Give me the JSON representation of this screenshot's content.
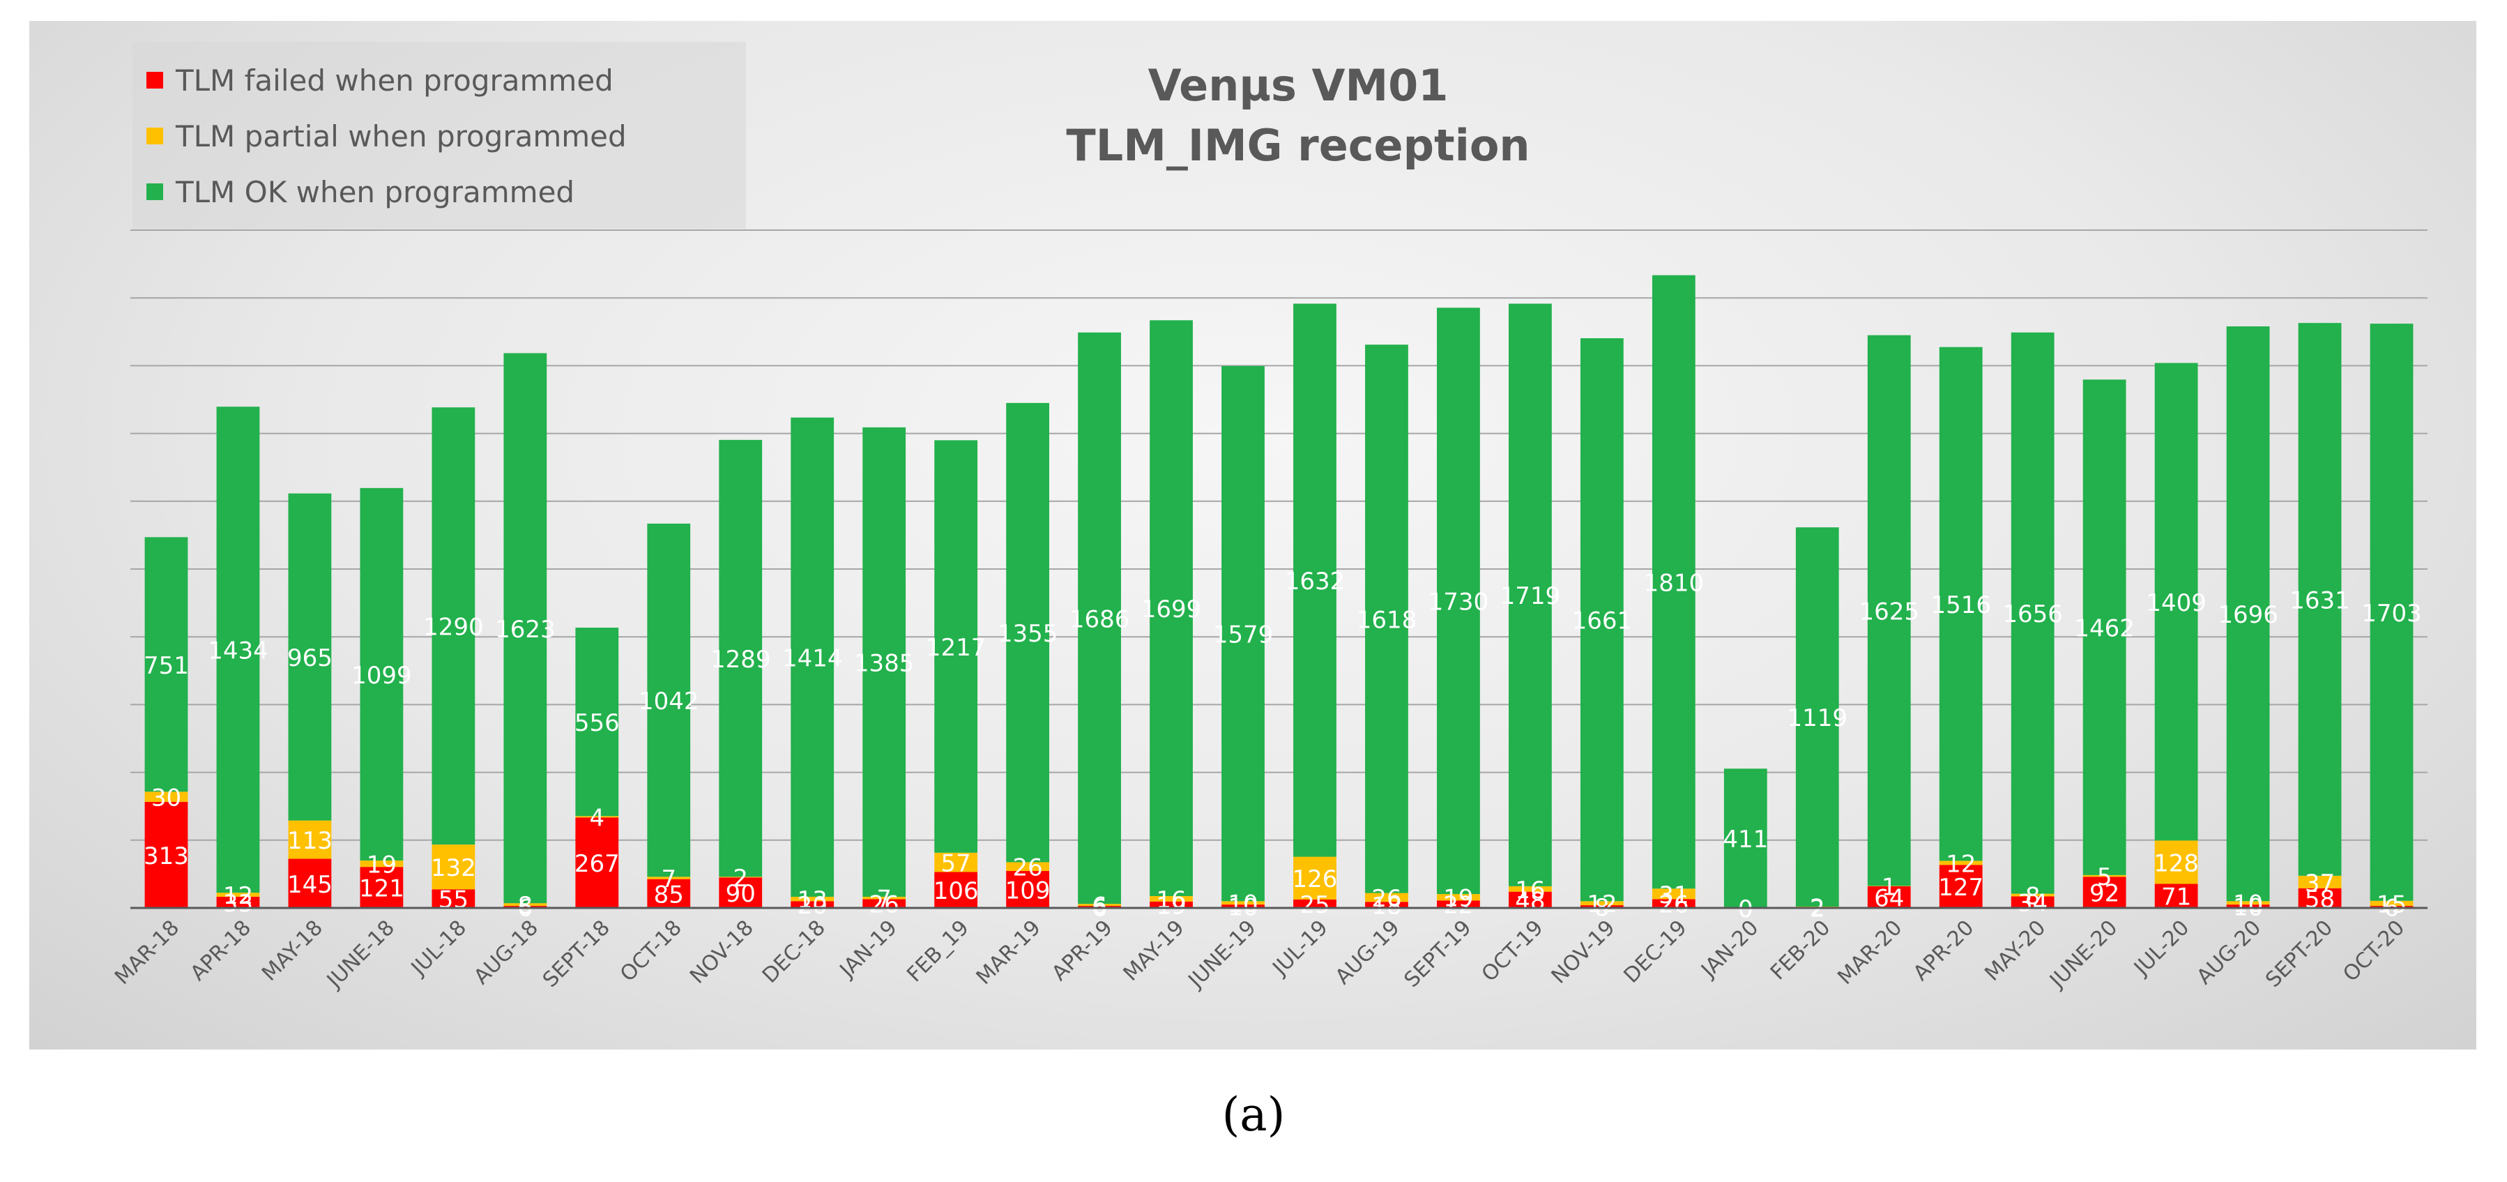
{
  "chart_data": {
    "type": "bar",
    "stacked": true,
    "title": "Venµs VM01",
    "subtitle": "TLM_IMG reception",
    "categories": [
      "MAR-18",
      "APR-18",
      "MAY-18",
      "JUNE-18",
      "JUL-18",
      "AUG-18",
      "SEPT-18",
      "OCT-18",
      "NOV-18",
      "DEC-18",
      "JAN-19",
      "FEB_19",
      "MAR-19",
      "APR-19",
      "MAY-19",
      "JUNE-19",
      "JUL-19",
      "AUG-19",
      "SEPT-19",
      "OCT-19",
      "NOV-19",
      "DEC-19",
      "JAN-20",
      "FEB-20",
      "MAR-20",
      "APR-20",
      "MAY-20",
      "JUNE-20",
      "JUL-20",
      "AUG-20",
      "SEPT-20",
      "OCT-20"
    ],
    "series": [
      {
        "name": "TLM failed when programmed",
        "color": "#ff0000",
        "values": [
          313,
          33,
          145,
          121,
          55,
          6,
          267,
          85,
          90,
          20,
          26,
          106,
          109,
          6,
          19,
          10,
          25,
          18,
          22,
          48,
          8,
          26,
          0,
          2,
          64,
          127,
          34,
          92,
          71,
          10,
          58,
          6
        ],
        "labels": [
          "313",
          "33",
          "145",
          "121",
          "55",
          "6",
          "267",
          "85",
          "90",
          "20",
          "26",
          "106",
          "109",
          "6",
          "19",
          "10",
          "25",
          "18",
          "22",
          "48",
          "8",
          "26",
          "0",
          "2",
          "64",
          "127",
          "34",
          "92",
          "71",
          "10",
          "58",
          "6"
        ]
      },
      {
        "name": "TLM partial when programmed",
        "color": "#ffc000",
        "values": [
          30,
          12,
          113,
          19,
          132,
          8,
          4,
          7,
          2,
          13,
          7,
          57,
          26,
          6,
          16,
          10,
          126,
          26,
          19,
          16,
          12,
          31,
          0,
          2,
          1,
          12,
          8,
          5,
          128,
          10,
          37,
          15
        ],
        "labels": [
          "30",
          "12",
          "113",
          "19",
          "132",
          "8",
          "4",
          "7",
          "2",
          "13",
          "7",
          "57",
          "26",
          "6",
          "16",
          "10",
          "126",
          "26",
          "19",
          "16",
          "12",
          "31",
          "0",
          "2",
          "1",
          "12",
          "8",
          "5",
          "128",
          "10",
          "37",
          "15"
        ]
      },
      {
        "name": "TLM OK when programmed",
        "color": "#22b14c",
        "values": [
          751,
          1434,
          965,
          1099,
          1290,
          1623,
          556,
          1042,
          1289,
          1414,
          1385,
          1217,
          1355,
          1686,
          1699,
          1579,
          1632,
          1618,
          1730,
          1719,
          1661,
          1810,
          411,
          1119,
          1625,
          1516,
          1656,
          1462,
          1409,
          1696,
          1631,
          1703
        ],
        "labels": [
          "751",
          "1434",
          "965",
          "1099",
          "1290",
          "1623",
          "556",
          "1042",
          "1289",
          "1414",
          "1385",
          "1217",
          "1355",
          "1686",
          "1699",
          "1579",
          "1632",
          "1618",
          "1730",
          "1719",
          "1661",
          "1810",
          "411",
          "1119",
          "1625",
          "1516",
          "1656",
          "1462",
          "1409",
          "1696",
          "1631",
          "1703"
        ]
      }
    ],
    "ylim": [
      0,
      2000
    ],
    "y_gridline_step": 200,
    "show_y_tick_labels": false,
    "xlabel": "",
    "ylabel": "",
    "legend_position": "top-left",
    "grid": true
  },
  "legend": {
    "items": [
      {
        "label": "TLM failed when programmed",
        "color": "#ff0000"
      },
      {
        "label": "TLM partial when programmed",
        "color": "#ffc000"
      },
      {
        "label": "TLM OK when programmed",
        "color": "#22b14c"
      }
    ]
  },
  "title": {
    "line1": "Venµs VM01",
    "line2": "TLM_IMG reception"
  },
  "caption": "(a)"
}
